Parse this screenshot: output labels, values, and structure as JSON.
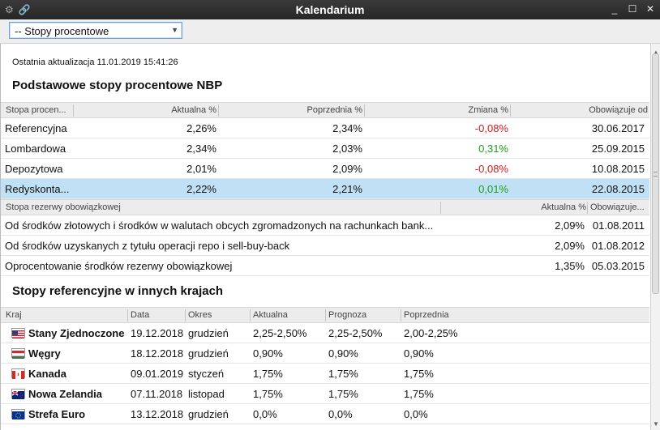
{
  "window": {
    "title": "Kalendarium",
    "left_icons": [
      "⚙",
      "🔗"
    ],
    "controls": [
      "_",
      "☐",
      "✕"
    ]
  },
  "toolbar": {
    "select_value": "-- Stopy procentowe",
    "select_arrow": "▼"
  },
  "updated": "Ostatnia aktualizacja 11.01.2019 15:41:26",
  "nbp": {
    "title": "Podstawowe stopy procentowe NBP",
    "headers": [
      "Stopa procen...",
      "Aktualna %",
      "Poprzednia %",
      "Zmiana %",
      "Obowiązuje od"
    ],
    "rows": [
      {
        "name": "Referencyjna",
        "current": "2,26%",
        "previous": "2,34%",
        "change": "-0,08%",
        "change_sign": "neg",
        "date": "30.06.2017"
      },
      {
        "name": "Lombardowa",
        "current": "2,34%",
        "previous": "2,03%",
        "change": "0,31%",
        "change_sign": "pos",
        "date": "25.09.2015"
      },
      {
        "name": "Depozytowa",
        "current": "2,01%",
        "previous": "2,09%",
        "change": "-0,08%",
        "change_sign": "neg",
        "date": "10.08.2015"
      },
      {
        "name": "Redyskonta...",
        "current": "2,22%",
        "previous": "2,21%",
        "change": "0,01%",
        "change_sign": "pos",
        "date": "22.08.2015",
        "selected": true
      }
    ]
  },
  "reserve": {
    "headers": [
      "Stopa rezerwy obowiązkowej",
      "Aktualna %",
      "Obowiązuje..."
    ],
    "rows": [
      {
        "name": "Od środków złotowych i środków w walutach obcych zgromadzonych na rachunkach bank...",
        "current": "2,09%",
        "date": "01.08.2011"
      },
      {
        "name": "Od środków uzyskanych z tytułu operacji repo i sell-buy-back",
        "current": "2,09%",
        "date": "01.08.2012"
      },
      {
        "name": "Oprocentowanie środków rezerwy obowiązkowej",
        "current": "1,35%",
        "date": "05.03.2015"
      }
    ]
  },
  "foreign": {
    "title": "Stopy referencyjne w innych krajach",
    "headers": [
      "Kraj",
      "Data",
      "Okres",
      "Aktualna",
      "Prognoza",
      "Poprzednia"
    ],
    "rows": [
      {
        "country": "Stany Zjednoczone",
        "flag": "us-flag-icon",
        "date": "19.12.2018",
        "period": "grudzień",
        "current": "2,25-2,50%",
        "forecast": "2,25-2,50%",
        "previous": "2,00-2,25%"
      },
      {
        "country": "Węgry",
        "flag": "hu-flag-icon",
        "date": "18.12.2018",
        "period": "grudzień",
        "current": "0,90%",
        "forecast": "0,90%",
        "previous": "0,90%"
      },
      {
        "country": "Kanada",
        "flag": "ca-flag-icon",
        "date": "09.01.2019",
        "period": "styczeń",
        "current": "1,75%",
        "forecast": "1,75%",
        "previous": "1,75%"
      },
      {
        "country": "Nowa Zelandia",
        "flag": "nz-flag-icon",
        "date": "07.11.2018",
        "period": "listopad",
        "current": "1,75%",
        "forecast": "1,75%",
        "previous": "1,75%"
      },
      {
        "country": "Strefa Euro",
        "flag": "eu-flag-icon",
        "date": "13.12.2018",
        "period": "grudzień",
        "current": "0,0%",
        "forecast": "0,0%",
        "previous": "0,0%"
      }
    ]
  },
  "colors": {
    "negative": "#d01b1b",
    "positive": "#1aa11a",
    "selected_row": "#bfe0f5",
    "titlebar": "#2e2e2e"
  }
}
